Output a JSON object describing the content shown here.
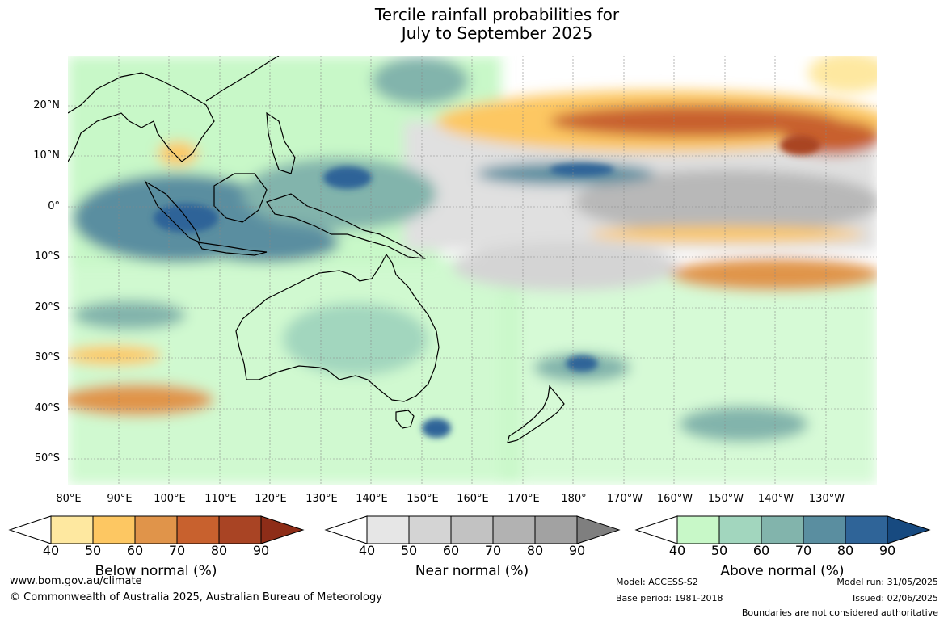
{
  "title": {
    "line1": "Tercile rainfall probabilities for",
    "line2": "July to September 2025"
  },
  "map": {
    "lat_labels": [
      "20°N",
      "10°N",
      "0°",
      "10°S",
      "20°S",
      "30°S",
      "40°S",
      "50°S"
    ],
    "lon_labels": [
      "80°E",
      "90°E",
      "100°E",
      "110°E",
      "120°E",
      "130°E",
      "140°E",
      "150°E",
      "160°E",
      "170°E",
      "180°",
      "170°W",
      "160°W",
      "150°W",
      "140°W",
      "130°W"
    ]
  },
  "legends": [
    {
      "name": "Below normal (%)",
      "ticks": [
        "40",
        "50",
        "60",
        "70",
        "80",
        "90"
      ],
      "colors": [
        "#ffffff",
        "#fee8a0",
        "#fdc762",
        "#e0944a",
        "#c8612e",
        "#a94424",
        "#8e2d18"
      ]
    },
    {
      "name": "Near normal (%)",
      "ticks": [
        "40",
        "50",
        "60",
        "70",
        "80",
        "90"
      ],
      "colors": [
        "#ffffff",
        "#e6e6e6",
        "#d4d4d4",
        "#c2c2c2",
        "#b2b2b2",
        "#a2a2a2",
        "#7f7f7f"
      ]
    },
    {
      "name": "Above normal (%)",
      "ticks": [
        "40",
        "50",
        "60",
        "70",
        "80",
        "90"
      ],
      "colors": [
        "#ffffff",
        "#c8f8c8",
        "#a2d6be",
        "#82b4ac",
        "#5a8ea0",
        "#2f6498",
        "#174a80"
      ]
    }
  ],
  "footer": {
    "website": "www.bom.gov.au/climate",
    "copyright": "© Commonwealth of Australia 2025, Australian Bureau of Meteorology",
    "model": "Model: ACCESS-S2",
    "base_period": "Base period: 1981-2018",
    "model_run": "Model run: 31/05/2025",
    "issued": "Issued: 02/06/2025",
    "disclaimer": "Boundaries are not considered authoritative"
  }
}
